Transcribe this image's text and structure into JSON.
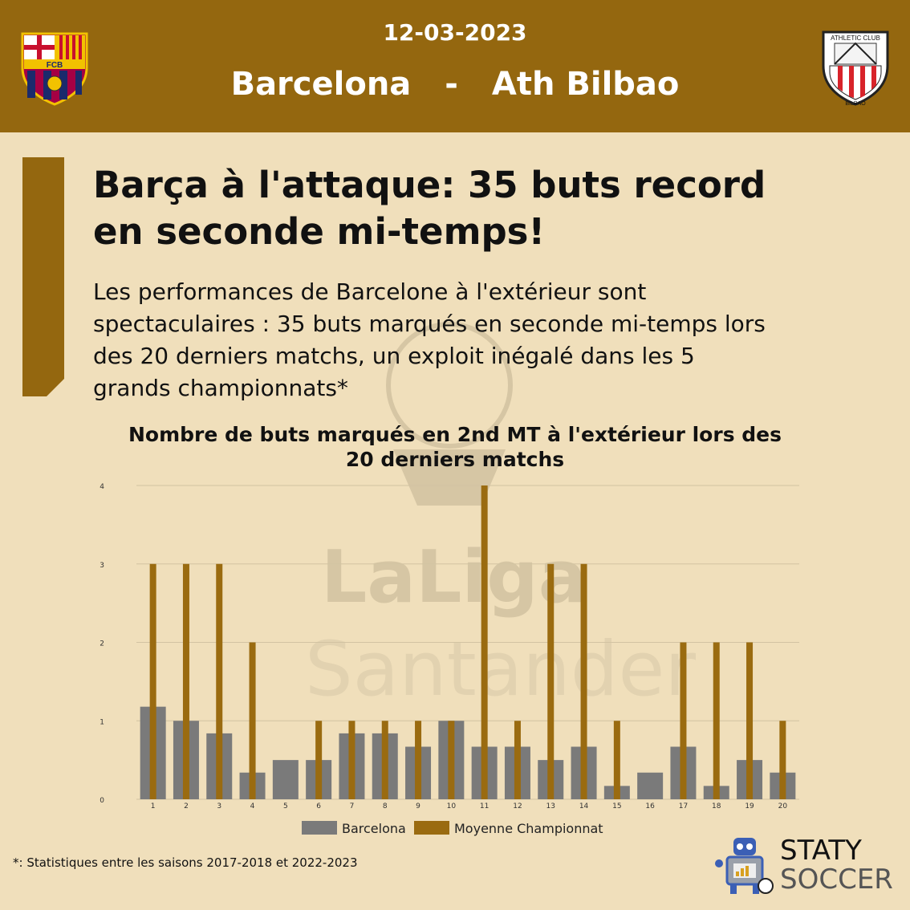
{
  "header": {
    "date": "12-03-2023",
    "home_team": "Barcelona",
    "separator": "-",
    "away_team": "Ath Bilbao",
    "home_crest_text": "FCB",
    "away_crest_text_top": "ATHLETIC CLUB",
    "away_crest_text_bottom": "BILBAO"
  },
  "article": {
    "headline_line1": "Barça à l'attaque: 35 buts record",
    "headline_line2": "en seconde mi-temps!",
    "desc_line1": "Les performances de Barcelone à l'extérieur sont",
    "desc_line2": "spectaculaires : 35 buts marqués en seconde mi-temps lors",
    "desc_line3": "des 20 derniers matchs, un exploit inégalé dans les 5",
    "desc_line4": "grands championnats*"
  },
  "watermark": {
    "line1": "LaLiga",
    "line2": "Santander"
  },
  "footnote": "*: Statistiques entre les saisons 2017-2018 et 2022-2023",
  "branding": {
    "line1": "STATY",
    "line2": "SOCCER"
  },
  "colors": {
    "header_bg": "#94670f",
    "background": "#f0dfbb",
    "barcelona_bar": "#7a7a7a",
    "league_bar": "#9a6b10"
  },
  "chart_data": {
    "type": "bar",
    "title_line1": "Nombre de buts marqués en 2nd MT à l'extérieur lors des",
    "title_line2": "20 derniers matchs",
    "categories": [
      "1",
      "2",
      "3",
      "4",
      "5",
      "6",
      "7",
      "8",
      "9",
      "10",
      "11",
      "12",
      "13",
      "14",
      "15",
      "16",
      "17",
      "18",
      "19",
      "20"
    ],
    "series": [
      {
        "name": "Barcelona",
        "values": [
          1.18,
          1.0,
          0.84,
          0.34,
          0.5,
          0.5,
          0.84,
          0.84,
          0.67,
          1.0,
          0.67,
          0.67,
          0.5,
          0.67,
          0.17,
          0.34,
          0.67,
          0.17,
          0.5,
          0.34
        ]
      },
      {
        "name": "Moyenne Championnat",
        "values": [
          3,
          3,
          3,
          2,
          0,
          1,
          1,
          1,
          1,
          1,
          4,
          1,
          3,
          3,
          1,
          0,
          2,
          2,
          2,
          1
        ]
      }
    ],
    "yticks": [
      "0",
      "1",
      "2",
      "3",
      "4"
    ],
    "ylim": [
      0,
      4
    ],
    "grid": true,
    "legend_position": "bottom"
  }
}
